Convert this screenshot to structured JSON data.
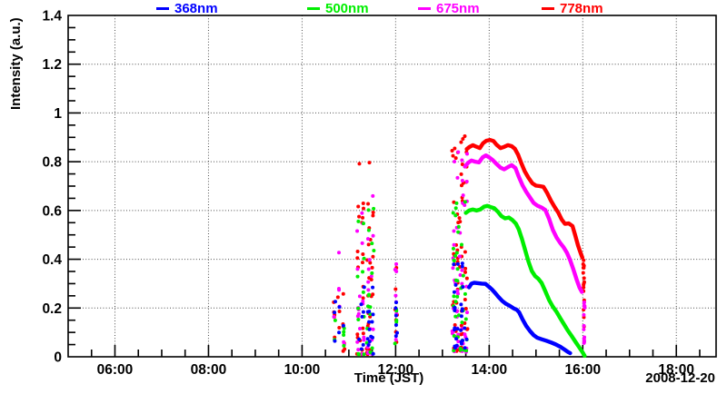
{
  "chart_data": {
    "type": "line",
    "title": "",
    "xlabel": "Time (JST)",
    "ylabel": "Intensity (a.u.)",
    "date_label": "2008-12-20",
    "x_unit": "hours_JST",
    "xlim": [
      5.0,
      18.85
    ],
    "ylim": [
      0,
      1.4
    ],
    "x_major_ticks": [
      6,
      8,
      10,
      12,
      14,
      16,
      18
    ],
    "x_tick_labels": [
      "06:00",
      "08:00",
      "10:00",
      "12:00",
      "14:00",
      "16:00",
      "18:00"
    ],
    "x_minor_step": 0.5,
    "y_major_ticks": [
      0,
      0.2,
      0.4,
      0.6,
      0.8,
      1.0,
      1.2,
      1.4
    ],
    "y_tick_labels": [
      "0",
      "0.2",
      "0.4",
      "0.6",
      "0.8",
      "1",
      "1.2",
      "1.4"
    ],
    "y_minor_step": 0.05,
    "grid": "dotted-at-major-ticks",
    "legend_position": "top-outside",
    "series": [
      {
        "name": "368nm",
        "color": "#0000ff",
        "points": [
          [
            13.57,
            0.285
          ],
          [
            13.62,
            0.3
          ],
          [
            13.68,
            0.304
          ],
          [
            13.76,
            0.302
          ],
          [
            13.84,
            0.3
          ],
          [
            13.92,
            0.299
          ],
          [
            13.99,
            0.288
          ],
          [
            14.06,
            0.276
          ],
          [
            14.13,
            0.261
          ],
          [
            14.2,
            0.245
          ],
          [
            14.28,
            0.229
          ],
          [
            14.36,
            0.217
          ],
          [
            14.44,
            0.209
          ],
          [
            14.52,
            0.199
          ],
          [
            14.59,
            0.193
          ],
          [
            14.64,
            0.182
          ],
          [
            14.71,
            0.154
          ],
          [
            14.79,
            0.127
          ],
          [
            14.87,
            0.106
          ],
          [
            14.95,
            0.089
          ],
          [
            15.03,
            0.078
          ],
          [
            15.12,
            0.072
          ],
          [
            15.22,
            0.066
          ],
          [
            15.32,
            0.059
          ],
          [
            15.42,
            0.051
          ],
          [
            15.52,
            0.041
          ],
          [
            15.6,
            0.031
          ],
          [
            15.68,
            0.02
          ],
          [
            15.73,
            0.015
          ]
        ]
      },
      {
        "name": "500nm",
        "color": "#00ee00",
        "points": [
          [
            13.5,
            0.59
          ],
          [
            13.57,
            0.6
          ],
          [
            13.65,
            0.604
          ],
          [
            13.73,
            0.6
          ],
          [
            13.81,
            0.604
          ],
          [
            13.89,
            0.616
          ],
          [
            13.96,
            0.619
          ],
          [
            14.03,
            0.614
          ],
          [
            14.11,
            0.609
          ],
          [
            14.19,
            0.594
          ],
          [
            14.26,
            0.577
          ],
          [
            14.34,
            0.568
          ],
          [
            14.42,
            0.571
          ],
          [
            14.5,
            0.56
          ],
          [
            14.57,
            0.546
          ],
          [
            14.63,
            0.523
          ],
          [
            14.7,
            0.483
          ],
          [
            14.77,
            0.436
          ],
          [
            14.84,
            0.39
          ],
          [
            14.91,
            0.352
          ],
          [
            14.98,
            0.331
          ],
          [
            15.05,
            0.32
          ],
          [
            15.12,
            0.303
          ],
          [
            15.2,
            0.269
          ],
          [
            15.28,
            0.233
          ],
          [
            15.36,
            0.206
          ],
          [
            15.44,
            0.184
          ],
          [
            15.52,
            0.158
          ],
          [
            15.6,
            0.133
          ],
          [
            15.68,
            0.108
          ],
          [
            15.76,
            0.086
          ],
          [
            15.84,
            0.063
          ],
          [
            15.92,
            0.04
          ],
          [
            15.99,
            0.02
          ],
          [
            16.04,
            0.004
          ]
        ]
      },
      {
        "name": "675nm",
        "color": "#ff00ff",
        "points": [
          [
            13.48,
            0.78
          ],
          [
            13.55,
            0.796
          ],
          [
            13.62,
            0.805
          ],
          [
            13.7,
            0.8
          ],
          [
            13.78,
            0.797
          ],
          [
            13.86,
            0.818
          ],
          [
            13.93,
            0.826
          ],
          [
            14.0,
            0.818
          ],
          [
            14.08,
            0.806
          ],
          [
            14.16,
            0.79
          ],
          [
            14.24,
            0.776
          ],
          [
            14.32,
            0.769
          ],
          [
            14.4,
            0.778
          ],
          [
            14.48,
            0.786
          ],
          [
            14.56,
            0.774
          ],
          [
            14.63,
            0.739
          ],
          [
            14.71,
            0.704
          ],
          [
            14.79,
            0.677
          ],
          [
            14.87,
            0.654
          ],
          [
            14.95,
            0.631
          ],
          [
            15.03,
            0.62
          ],
          [
            15.12,
            0.612
          ],
          [
            15.2,
            0.602
          ],
          [
            15.28,
            0.566
          ],
          [
            15.36,
            0.521
          ],
          [
            15.44,
            0.489
          ],
          [
            15.52,
            0.466
          ],
          [
            15.59,
            0.449
          ],
          [
            15.66,
            0.427
          ],
          [
            15.73,
            0.396
          ],
          [
            15.8,
            0.358
          ],
          [
            15.87,
            0.316
          ],
          [
            15.93,
            0.284
          ],
          [
            15.98,
            0.266
          ]
        ]
      },
      {
        "name": "778nm",
        "color": "#ff0000",
        "points": [
          [
            13.52,
            0.852
          ],
          [
            13.58,
            0.861
          ],
          [
            13.65,
            0.868
          ],
          [
            13.72,
            0.862
          ],
          [
            13.8,
            0.856
          ],
          [
            13.87,
            0.876
          ],
          [
            13.94,
            0.886
          ],
          [
            14.02,
            0.889
          ],
          [
            14.09,
            0.885
          ],
          [
            14.16,
            0.869
          ],
          [
            14.24,
            0.856
          ],
          [
            14.32,
            0.861
          ],
          [
            14.4,
            0.868
          ],
          [
            14.48,
            0.864
          ],
          [
            14.55,
            0.853
          ],
          [
            14.62,
            0.828
          ],
          [
            14.69,
            0.793
          ],
          [
            14.76,
            0.761
          ],
          [
            14.84,
            0.734
          ],
          [
            14.92,
            0.712
          ],
          [
            15.0,
            0.702
          ],
          [
            15.08,
            0.7
          ],
          [
            15.16,
            0.697
          ],
          [
            15.24,
            0.671
          ],
          [
            15.32,
            0.64
          ],
          [
            15.4,
            0.614
          ],
          [
            15.48,
            0.59
          ],
          [
            15.55,
            0.563
          ],
          [
            15.62,
            0.545
          ],
          [
            15.7,
            0.547
          ],
          [
            15.78,
            0.536
          ],
          [
            15.84,
            0.498
          ],
          [
            15.9,
            0.456
          ],
          [
            15.95,
            0.428
          ],
          [
            15.99,
            0.407
          ]
        ]
      }
    ],
    "noise_clusters": [
      {
        "name": "morning-cluster-1",
        "t_columns": [
          10.7,
          10.79,
          10.89
        ],
        "t_jitter": 0.015,
        "groups": [
          {
            "color": "#ff0000",
            "n": 14,
            "v_range": [
              0.02,
              0.3
            ],
            "bias": 1.3
          },
          {
            "color": "#ff00ff",
            "n": 7,
            "v_range": [
              0.03,
              0.43
            ],
            "bias": 1.5
          },
          {
            "color": "#00ee00",
            "n": 6,
            "v_range": [
              0.02,
              0.22
            ],
            "bias": 1.2
          },
          {
            "color": "#0000ff",
            "n": 6,
            "v_range": [
              0.03,
              0.26
            ],
            "bias": 1.2
          }
        ]
      },
      {
        "name": "morning-cluster-2",
        "t_columns": [
          11.2,
          11.3,
          11.42,
          11.5
        ],
        "t_jitter": 0.022,
        "groups": [
          {
            "color": "#ff0000",
            "n": 48,
            "v_range": [
              0.01,
              0.81
            ],
            "bias": 2.0
          },
          {
            "color": "#ff00ff",
            "n": 38,
            "v_range": [
              0.01,
              0.72
            ],
            "bias": 1.8
          },
          {
            "color": "#00ee00",
            "n": 28,
            "v_range": [
              0.01,
              0.63
            ],
            "bias": 1.8
          },
          {
            "color": "#0000ff",
            "n": 20,
            "v_range": [
              0.01,
              0.33
            ],
            "bias": 1.3
          }
        ]
      },
      {
        "name": "noon-cluster",
        "t_columns": [
          12.01
        ],
        "t_jitter": 0.015,
        "groups": [
          {
            "color": "#ff0000",
            "n": 7,
            "v_range": [
              0.04,
              0.43
            ],
            "bias": 1.2
          },
          {
            "color": "#ff00ff",
            "n": 7,
            "v_range": [
              0.05,
              0.39
            ],
            "bias": 1.2
          },
          {
            "color": "#00ee00",
            "n": 5,
            "v_range": [
              0.03,
              0.34
            ],
            "bias": 1.2
          },
          {
            "color": "#0000ff",
            "n": 6,
            "v_range": [
              0.02,
              0.23
            ],
            "bias": 1.2
          }
        ]
      },
      {
        "name": "pre-afternoon-cluster",
        "t_columns": [
          13.25,
          13.33,
          13.42,
          13.5
        ],
        "t_jitter": 0.025,
        "groups": [
          {
            "color": "#ff0000",
            "n": 60,
            "v_range": [
              0.02,
              0.91
            ],
            "bias": 1.6
          },
          {
            "color": "#ff00ff",
            "n": 50,
            "v_range": [
              0.02,
              0.84
            ],
            "bias": 1.6
          },
          {
            "color": "#00ee00",
            "n": 38,
            "v_range": [
              0.02,
              0.64
            ],
            "bias": 1.5
          },
          {
            "color": "#0000ff",
            "n": 28,
            "v_range": [
              0.02,
              0.4
            ],
            "bias": 1.2
          }
        ]
      },
      {
        "name": "sunset-drop-778",
        "t_columns": [
          16.02
        ],
        "t_jitter": 0.008,
        "groups": [
          {
            "color": "#ff0000",
            "n": 16,
            "v_range": [
              0.06,
              0.4
            ],
            "bias": 1.0
          }
        ]
      },
      {
        "name": "sunset-drop-675",
        "t_columns": [
          16.03
        ],
        "t_jitter": 0.008,
        "groups": [
          {
            "color": "#ff00ff",
            "n": 14,
            "v_range": [
              0.05,
              0.27
            ],
            "bias": 1.0
          }
        ]
      }
    ],
    "colors": {
      "blue_368nm": "#0000ff",
      "green_500nm": "#00ee00",
      "magenta_675nm": "#ff00ff",
      "red_778nm": "#ff0000",
      "axis": "#000000",
      "grid": "#4d4d4d",
      "background": "#ffffff"
    }
  }
}
